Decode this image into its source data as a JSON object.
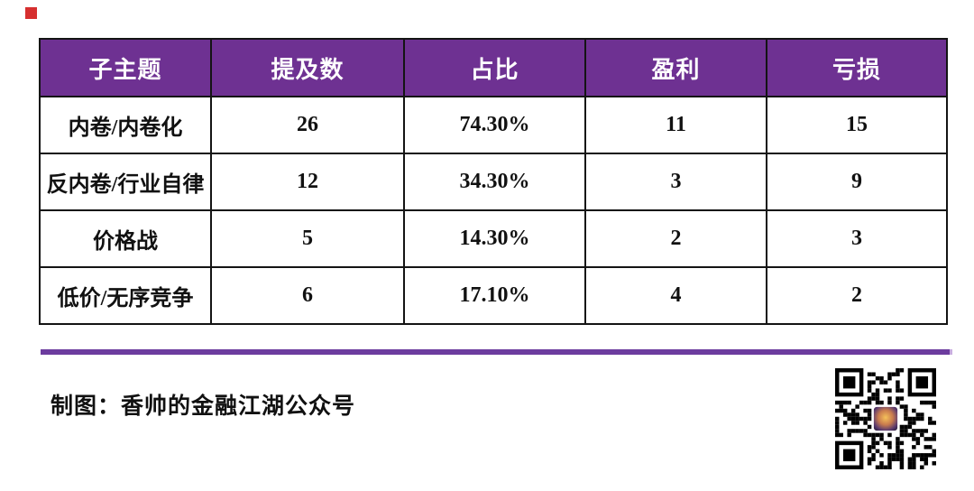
{
  "chart_data": {
    "type": "table",
    "title": "",
    "columns": [
      "子主题",
      "提及数",
      "占比",
      "盈利",
      "亏损"
    ],
    "rows": [
      {
        "topic": "内卷/内卷化",
        "mentions": "26",
        "share": "74.30%",
        "profit": "11",
        "loss": "15"
      },
      {
        "topic": "反内卷/行业自律",
        "mentions": "12",
        "share": "34.30%",
        "profit": "3",
        "loss": "9"
      },
      {
        "topic": "价格战",
        "mentions": "5",
        "share": "14.30%",
        "profit": "2",
        "loss": "3"
      },
      {
        "topic": "低价/无序竞争",
        "mentions": "6",
        "share": "17.10%",
        "profit": "4",
        "loss": "2"
      }
    ]
  },
  "footer": {
    "caption": "制图：香帅的金融江湖公众号"
  },
  "icons": {
    "qr_code": "qr-code",
    "red_mark": "red-square-mark"
  },
  "colors": {
    "header_purple": "#6e3192",
    "divider_purple": "#6c3c9e",
    "accent_red": "#d62f2f",
    "border_black": "#141414",
    "header_text": "#ffffff",
    "body_text": "#111111"
  }
}
